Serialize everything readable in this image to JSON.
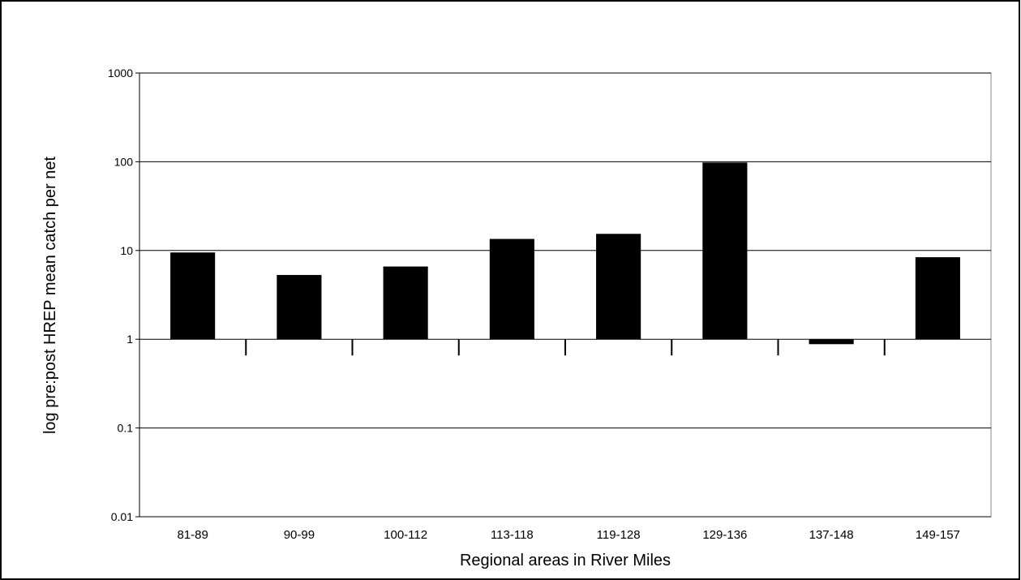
{
  "chart_data": {
    "type": "bar",
    "y_label": "log pre:post HREP mean catch per net",
    "x_label": "Regional areas in River Miles",
    "categories": [
      "81-89",
      "90-99",
      "100-112",
      "113-118",
      "119-128",
      "129-136",
      "137-148",
      "149-157"
    ],
    "values": [
      9.5,
      5.3,
      6.6,
      13.5,
      15.4,
      98,
      0.88,
      8.4
    ],
    "color": "#000000",
    "log_y": true,
    "x_axis_crosses": 1,
    "ylim": [
      0.01,
      1000
    ],
    "yticks": [
      0.01,
      0.1,
      1,
      10,
      100,
      1000
    ],
    "grid": true
  }
}
